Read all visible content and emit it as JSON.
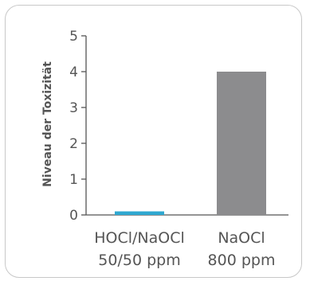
{
  "chart_data": {
    "type": "bar",
    "title": "",
    "xlabel": "",
    "ylabel": "Niveau der Toxizität",
    "ylim": [
      0,
      5
    ],
    "yticks": [
      "0",
      "1",
      "2",
      "3",
      "4",
      "5"
    ],
    "categories": [
      {
        "line1": "HOCl/NaOCl",
        "line2": "50/50 ppm"
      },
      {
        "line1": "NaOCl",
        "line2": "800 ppm"
      }
    ],
    "values": [
      0.1,
      4.0
    ],
    "colors": [
      "#2fa8d0",
      "#8c8c8e"
    ],
    "grid": false
  },
  "colors": {
    "axis": "#555555",
    "border": "#c8c8c8"
  }
}
